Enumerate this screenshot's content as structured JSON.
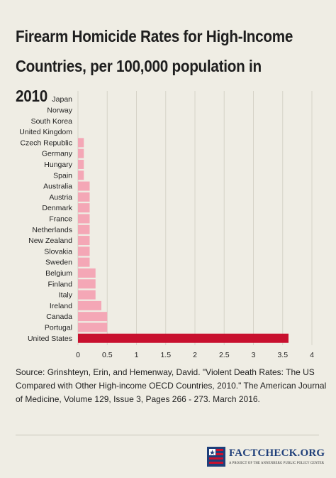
{
  "header": {
    "title": "Firearm Homicide Rates for High-Income Countries, per 100,000 population in 2010"
  },
  "chart_data": {
    "type": "bar",
    "orientation": "horizontal",
    "title": "Firearm Homicide Rates for High-Income Countries, per 100,000 population in 2010",
    "xlabel": "",
    "ylabel": "",
    "xlim": [
      0,
      4
    ],
    "ticks": [
      "0",
      "0.5",
      "1",
      "1.5",
      "2",
      "2.5",
      "3",
      "3.5",
      "4"
    ],
    "grid": true,
    "categories": [
      "Japan",
      "Norway",
      "South Korea",
      "United Kingdom",
      "Czech Republic",
      "Germany",
      "Hungary",
      "Spain",
      "Australia",
      "Austria",
      "Denmark",
      "France",
      "Netherlands",
      "New Zealand",
      "Slovakia",
      "Sweden",
      "Belgium",
      "Finland",
      "Italy",
      "Ireland",
      "Canada",
      "Portugal",
      "United States"
    ],
    "values": [
      0.0,
      0.0,
      0.0,
      0.0,
      0.1,
      0.1,
      0.1,
      0.1,
      0.2,
      0.2,
      0.2,
      0.2,
      0.2,
      0.2,
      0.2,
      0.2,
      0.3,
      0.3,
      0.3,
      0.4,
      0.5,
      0.5,
      3.6
    ],
    "colors": {
      "default": "#f4a7b6",
      "highlight": "#c8102e",
      "highlight_category": "United States",
      "grid": "#d6d3c8"
    }
  },
  "footer": {
    "source": "Source: Grinshteyn, Erin, and Hemenway, David. \"Violent Death Rates: The US Compared with Other High-income OECD Countries, 2010.\" The American Journal of Medicine, Volume 129, Issue 3, Pages 266 - 273. March 2016.",
    "logo": {
      "brand": "FACTCHECK.ORG",
      "tagline": "A PROJECT OF THE ANNENBERG PUBLIC POLICY CENTER"
    }
  }
}
